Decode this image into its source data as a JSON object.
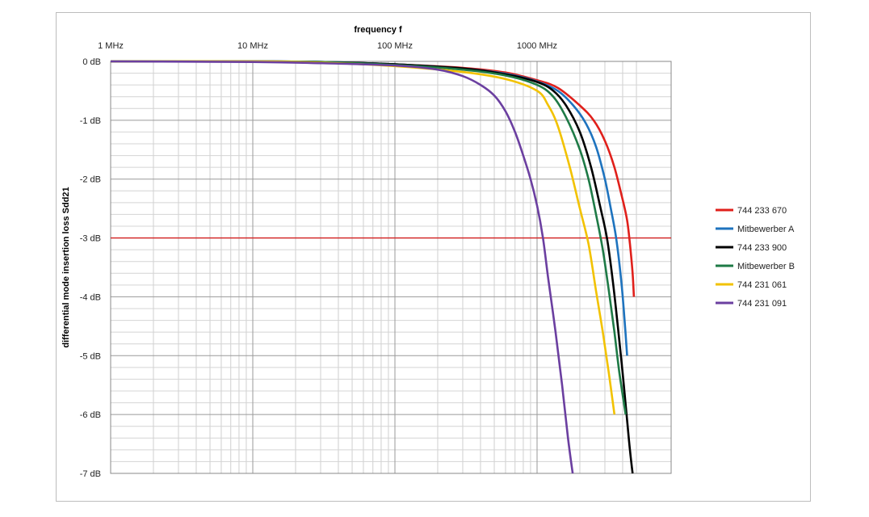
{
  "chart_data": {
    "type": "line",
    "xlabel": "frequency f",
    "ylabel": "differential mode insertion loss Sdd21",
    "x_scale": "log",
    "xlim": [
      1,
      5000
    ],
    "ylim": [
      -7,
      0
    ],
    "grid": true,
    "legend_position": "right",
    "x_ticks": [
      {
        "value": 1,
        "label": "1 MHz"
      },
      {
        "value": 10,
        "label": "10 MHz"
      },
      {
        "value": 100,
        "label": "100 MHz"
      },
      {
        "value": 1000,
        "label": "1000 MHz"
      }
    ],
    "y_ticks": [
      {
        "value": 0,
        "label": "0 dB"
      },
      {
        "value": -1,
        "label": "-1 dB"
      },
      {
        "value": -2,
        "label": "-2 dB"
      },
      {
        "value": -3,
        "label": "-3 dB"
      },
      {
        "value": -4,
        "label": "-4 dB"
      },
      {
        "value": -5,
        "label": "-5 dB"
      },
      {
        "value": -6,
        "label": "-6 dB"
      },
      {
        "value": -7,
        "label": "-7 dB"
      }
    ],
    "reference_line": {
      "y": -3,
      "color": "#d42020"
    },
    "series": [
      {
        "name": "744 233 670",
        "color": "#e0201b",
        "points": [
          [
            1,
            0
          ],
          [
            10,
            0
          ],
          [
            30,
            -0.01
          ],
          [
            100,
            -0.05
          ],
          [
            300,
            -0.11
          ],
          [
            600,
            -0.19
          ],
          [
            1000,
            -0.32
          ],
          [
            1400,
            -0.45
          ],
          [
            2000,
            -0.75
          ],
          [
            2500,
            -1.0
          ],
          [
            3000,
            -1.35
          ],
          [
            3500,
            -1.8
          ],
          [
            4000,
            -2.35
          ],
          [
            4300,
            -2.7
          ],
          [
            4500,
            -3.1
          ],
          [
            4700,
            -3.6
          ],
          [
            4800,
            -4.0
          ]
        ]
      },
      {
        "name": "Mitbewerber A",
        "color": "#1e73be",
        "points": [
          [
            1,
            0
          ],
          [
            10,
            0
          ],
          [
            30,
            -0.01
          ],
          [
            100,
            -0.05
          ],
          [
            300,
            -0.12
          ],
          [
            600,
            -0.21
          ],
          [
            1000,
            -0.34
          ],
          [
            1400,
            -0.5
          ],
          [
            1800,
            -0.75
          ],
          [
            2200,
            -1.05
          ],
          [
            2600,
            -1.45
          ],
          [
            3000,
            -2.0
          ],
          [
            3300,
            -2.5
          ],
          [
            3600,
            -3.0
          ],
          [
            3900,
            -3.7
          ],
          [
            4100,
            -4.3
          ],
          [
            4300,
            -5.0
          ]
        ]
      },
      {
        "name": "744 233 900",
        "color": "#000000",
        "points": [
          [
            1,
            0
          ],
          [
            10,
            0
          ],
          [
            30,
            -0.01
          ],
          [
            100,
            -0.05
          ],
          [
            300,
            -0.12
          ],
          [
            600,
            -0.22
          ],
          [
            1000,
            -0.35
          ],
          [
            1300,
            -0.5
          ],
          [
            1600,
            -0.75
          ],
          [
            2000,
            -1.2
          ],
          [
            2400,
            -1.8
          ],
          [
            2800,
            -2.5
          ],
          [
            3100,
            -3.0
          ],
          [
            3400,
            -3.7
          ],
          [
            3700,
            -4.5
          ],
          [
            4000,
            -5.3
          ],
          [
            4300,
            -6.1
          ],
          [
            4500,
            -6.6
          ],
          [
            4700,
            -7.0
          ]
        ]
      },
      {
        "name": "Mitbewerber B",
        "color": "#1e7a46",
        "points": [
          [
            1,
            0
          ],
          [
            10,
            0
          ],
          [
            30,
            -0.01
          ],
          [
            100,
            -0.06
          ],
          [
            300,
            -0.14
          ],
          [
            600,
            -0.24
          ],
          [
            1000,
            -0.4
          ],
          [
            1300,
            -0.6
          ],
          [
            1600,
            -0.95
          ],
          [
            2000,
            -1.5
          ],
          [
            2300,
            -2.0
          ],
          [
            2600,
            -2.6
          ],
          [
            2900,
            -3.2
          ],
          [
            3200,
            -3.9
          ],
          [
            3500,
            -4.6
          ],
          [
            3800,
            -5.3
          ],
          [
            4200,
            -6.0
          ]
        ]
      },
      {
        "name": "744 231 061",
        "color": "#f2c200",
        "points": [
          [
            1,
            0
          ],
          [
            10,
            0
          ],
          [
            30,
            -0.02
          ],
          [
            100,
            -0.08
          ],
          [
            300,
            -0.18
          ],
          [
            600,
            -0.3
          ],
          [
            1000,
            -0.5
          ],
          [
            1200,
            -0.75
          ],
          [
            1400,
            -1.1
          ],
          [
            1700,
            -1.8
          ],
          [
            2000,
            -2.5
          ],
          [
            2300,
            -3.1
          ],
          [
            2600,
            -3.9
          ],
          [
            2900,
            -4.6
          ],
          [
            3200,
            -5.3
          ],
          [
            3500,
            -6.0
          ]
        ]
      },
      {
        "name": "744 231 091",
        "color": "#6b3fa0",
        "points": [
          [
            1,
            0
          ],
          [
            10,
            -0.01
          ],
          [
            30,
            -0.03
          ],
          [
            100,
            -0.07
          ],
          [
            200,
            -0.14
          ],
          [
            300,
            -0.25
          ],
          [
            400,
            -0.4
          ],
          [
            500,
            -0.58
          ],
          [
            600,
            -0.85
          ],
          [
            700,
            -1.2
          ],
          [
            800,
            -1.6
          ],
          [
            900,
            -2.0
          ],
          [
            1000,
            -2.45
          ],
          [
            1100,
            -3.0
          ],
          [
            1200,
            -3.7
          ],
          [
            1350,
            -4.6
          ],
          [
            1500,
            -5.5
          ],
          [
            1650,
            -6.4
          ],
          [
            1780,
            -7.0
          ]
        ]
      }
    ]
  }
}
